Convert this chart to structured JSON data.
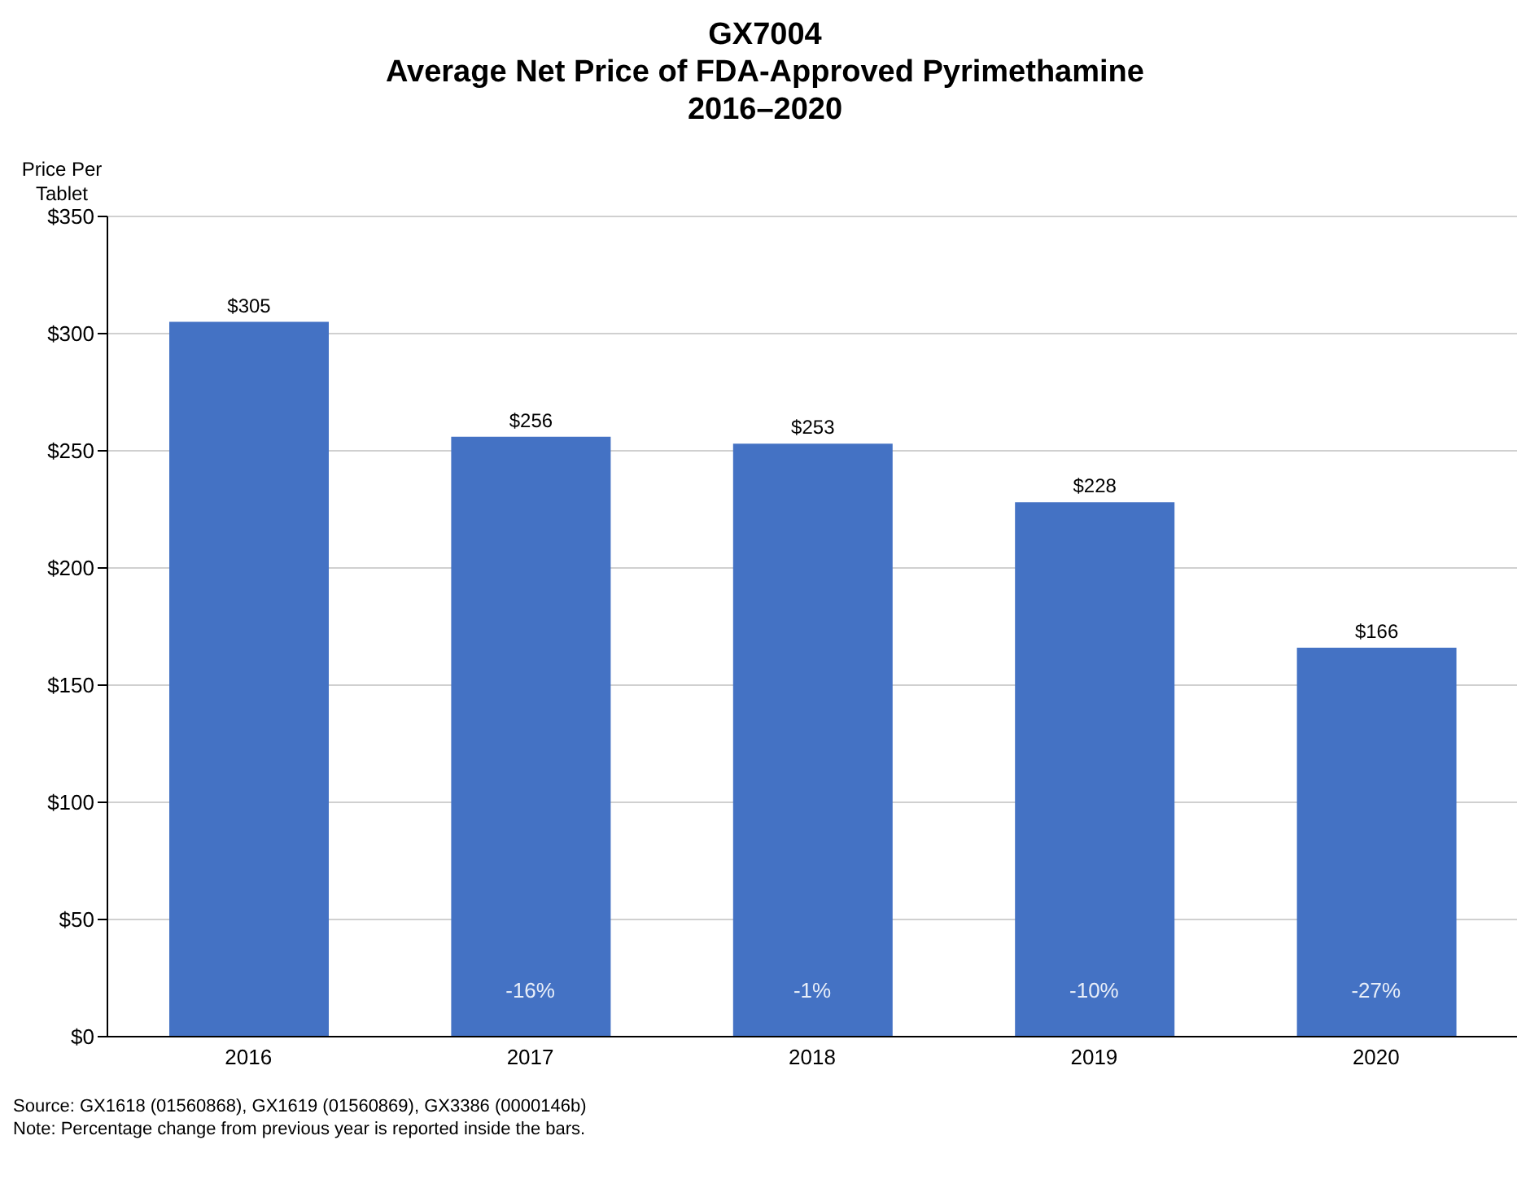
{
  "chart_data": {
    "type": "bar",
    "title": "GX7004\nAverage Net Price of FDA-Approved Pyrimethamine\n2016–2020",
    "ylabel": "Price Per\nTablet",
    "categories": [
      "2016",
      "2017",
      "2018",
      "2019",
      "2020"
    ],
    "values": [
      305,
      256,
      253,
      228,
      166
    ],
    "color": "#4472c4",
    "value_labels": [
      "$305",
      "$256",
      "$253",
      "$228",
      "$166"
    ],
    "ylim": [
      0,
      350
    ],
    "yticks": [
      {
        "value": 0,
        "label": "$0"
      },
      {
        "value": 50,
        "label": "$50"
      },
      {
        "value": 100,
        "label": "$100"
      },
      {
        "value": 150,
        "label": "$150"
      },
      {
        "value": 200,
        "label": "$200"
      },
      {
        "value": 250,
        "label": "$250"
      },
      {
        "value": 300,
        "label": "$300"
      },
      {
        "value": 350,
        "label": "$350"
      }
    ],
    "grid": "y",
    "legend": false,
    "annotations": [
      "-16%",
      "-1%",
      "-10%",
      "-27%",
      "Source:  GX1618 (01560868), GX1619 (01560869), GX3386 (0000146b)",
      "Note:  Percentage change from previous year is reported inside the bars."
    ]
  }
}
